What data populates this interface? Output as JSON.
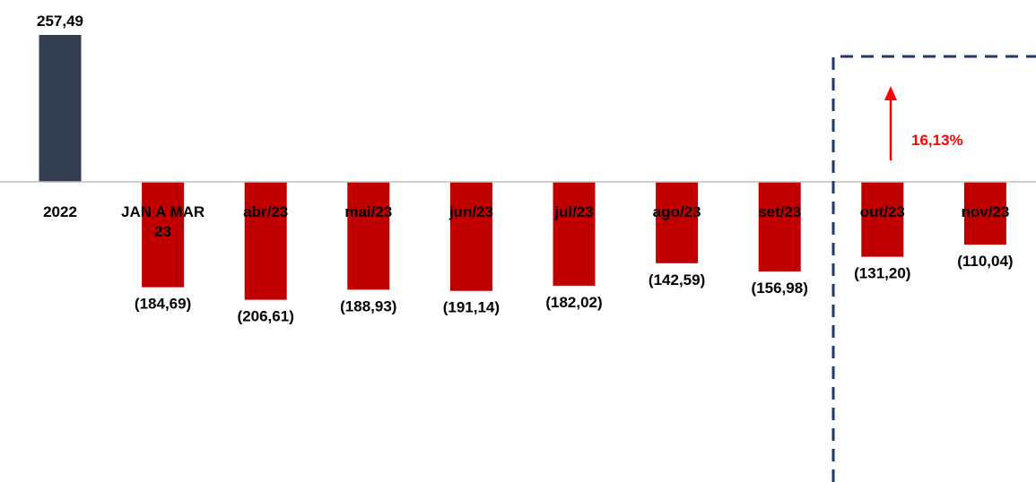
{
  "chart_data": {
    "type": "bar",
    "categories": [
      "2022",
      "JAN A MAR 23",
      "abr/23",
      "mai/23",
      "jun/23",
      "jul/23",
      "ago/23",
      "set/23",
      "out/23",
      "nov/23"
    ],
    "category_label_lines": [
      [
        "2022"
      ],
      [
        "JAN A MAR",
        "23"
      ],
      [
        "abr/23"
      ],
      [
        "mai/23"
      ],
      [
        "jun/23"
      ],
      [
        "jul/23"
      ],
      [
        "ago/23"
      ],
      [
        "set/23"
      ],
      [
        "out/23"
      ],
      [
        "nov/23"
      ]
    ],
    "values": [
      257.49,
      -184.69,
      -206.61,
      -188.93,
      -191.14,
      -182.02,
      -142.59,
      -156.98,
      -131.2,
      -110.04
    ],
    "value_labels": [
      "257,49",
      "(184,69)",
      "(206,61)",
      "(188,93)",
      "(191,14)",
      "(182,02)",
      "(142,59)",
      "(156,98)",
      "(131,20)",
      "(110,04)"
    ],
    "colors": {
      "positive": "#333f50",
      "negative": "#c00000",
      "axis": "#bfbfbf",
      "highlight_box": "#1f3864",
      "arrow": "#ff0000"
    },
    "annotation": {
      "text": "16,13%",
      "direction": "up",
      "highlight_categories": [
        "out/23",
        "nov/23"
      ]
    },
    "title": "",
    "xlabel": "",
    "ylabel": "",
    "grid": false
  }
}
